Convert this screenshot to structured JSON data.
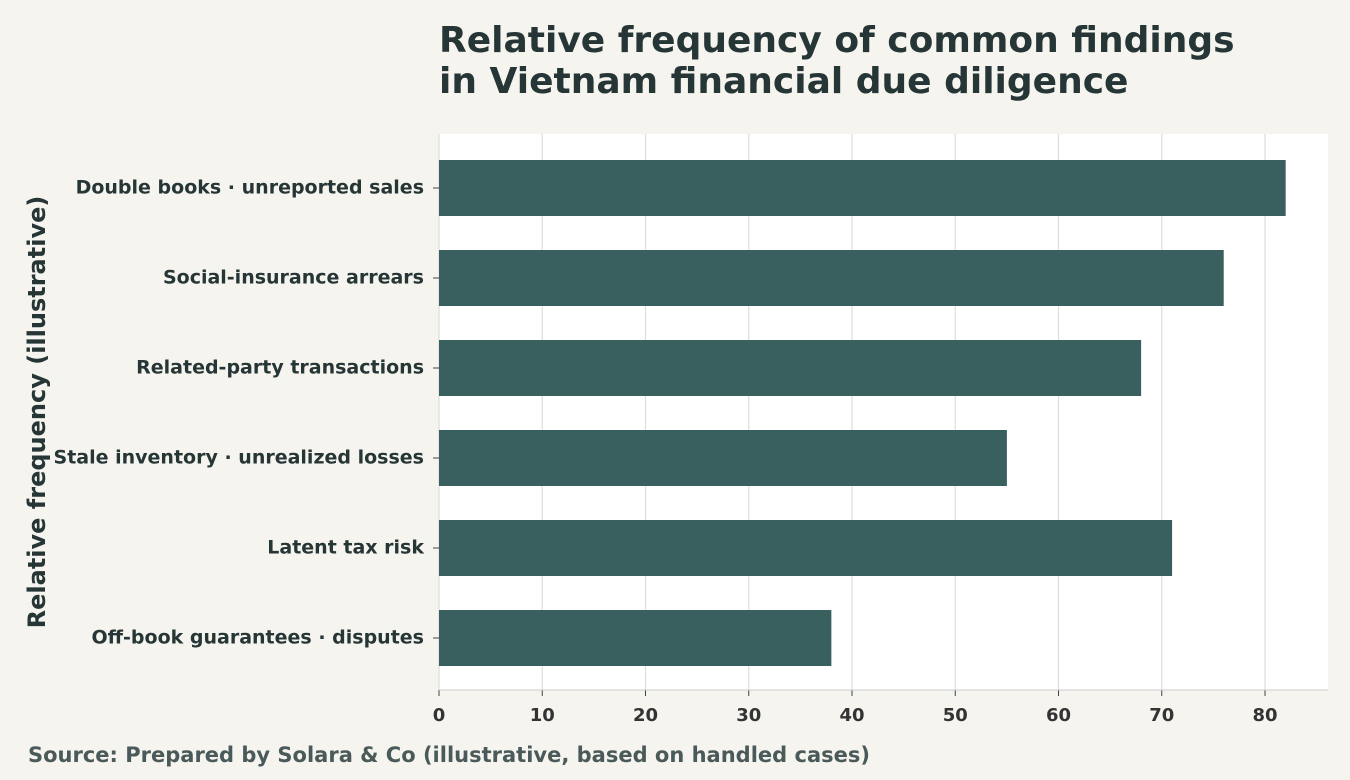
{
  "chart_data": {
    "type": "barh",
    "title": "Relative frequency of common findings in Vietnam financial due diligence",
    "y_label": "Relative frequency (illustrative)",
    "source": "Source: Prepared by Solara & Co (illustrative, based on handled cases)",
    "categories": [
      "Double books · unreported sales",
      "Social-insurance arrears",
      "Related-party transactions",
      "Stale inventory · unrealized losses",
      "Latent tax risk",
      "Off-book guarantees · disputes"
    ],
    "values": [
      82,
      76,
      68,
      55,
      71,
      38
    ],
    "color": "#3a5f5f",
    "xlim": [
      0,
      86.1
    ],
    "xticks": [
      0,
      10,
      20,
      30,
      40,
      50,
      60,
      70,
      80
    ],
    "grid": true
  }
}
